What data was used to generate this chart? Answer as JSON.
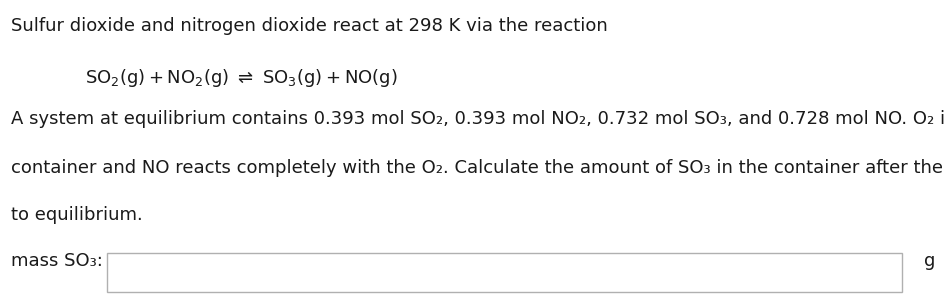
{
  "background_color": "#ffffff",
  "text_color": "#1a1a1a",
  "title_text": "Sulfur dioxide and nitrogen dioxide react at 298 K via the reaction",
  "equation_text": "$\\mathrm{SO_2(g) + NO_2(g) \\rightleftharpoons SO_3(g) + NO(g)}$",
  "body_line1_segments": [
    [
      "A system at equilibrium contains 0.393 mol SO",
      false
    ],
    [
      "$\\mathregular{_2}$",
      false
    ],
    [
      ", 0.393 mol NO",
      false
    ],
    [
      "$\\mathregular{_2}$",
      false
    ],
    [
      ", 0.732 mol SO",
      false
    ],
    [
      "$\\mathregular{_3}$",
      false
    ],
    [
      ", and 0.728 mol NO. O",
      false
    ],
    [
      "$\\mathregular{_2}$",
      false
    ],
    [
      " is added to the",
      false
    ]
  ],
  "body_line2_segments": [
    [
      "container and NO reacts completely with the O",
      false
    ],
    [
      "$\\mathregular{_2}$",
      false
    ],
    [
      ". Calculate the amount of SO",
      false
    ],
    [
      "$\\mathregular{_3}$",
      false
    ],
    [
      " in the container after the system returns",
      false
    ]
  ],
  "body_line3": "to equilibrium.",
  "label_main": "mass SO",
  "label_sub": "$\\mathregular{_3}$",
  "label_colon": ":",
  "unit_text": "g",
  "fontsize_body": 13,
  "fontsize_eq": 13
}
